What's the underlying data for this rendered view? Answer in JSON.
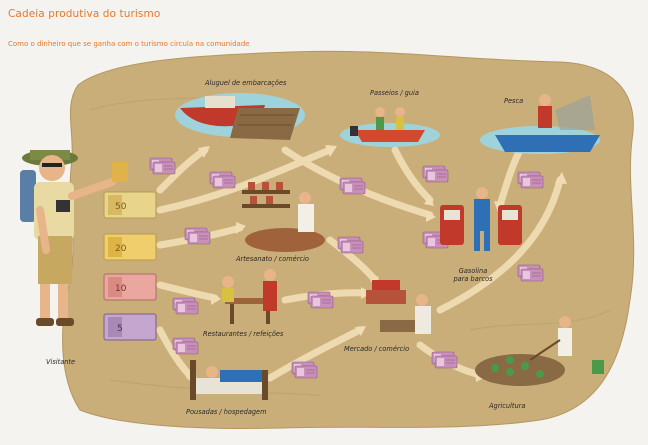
{
  "header": {
    "title": "Cadeia produtiva do turismo",
    "subtitle": "Como o dinheiro que se ganha com o turismo circula na comunidade"
  },
  "nodes": {
    "visitor": "Visitante",
    "boat_rental": "Aluguel de embarcações",
    "tours": "Passeios / guia",
    "fishing": "Pesca",
    "crafts": "Artesanato / comércio",
    "fuel": "Gasolina",
    "fuel_sub": "para barcos",
    "restaurants": "Restaurantes / refeições",
    "market": "Mercado / comércio",
    "lodging": "Pousadas / hospedagem",
    "agriculture": "Agricultura"
  },
  "money_notes": [
    "50",
    "20",
    "10",
    "5"
  ],
  "colors": {
    "title": "#e8782a",
    "land": "#c9ae7a",
    "arrow": "#f1ddb3",
    "water": "#9fd3dc"
  }
}
